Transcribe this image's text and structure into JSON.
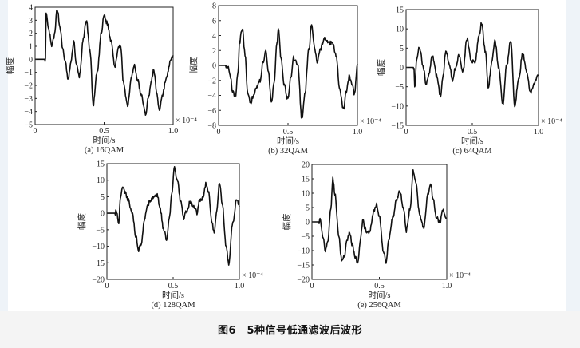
{
  "caption": "图6　5种信号低通滤波后波形",
  "colors": {
    "panel_bg": "#ffffff",
    "page_bg": "#f4f4f4",
    "trace": "#111111"
  },
  "chart_data": [
    {
      "type": "line",
      "subtitle": "(a) 16QAM",
      "xlabel": "时间/s",
      "ylabel": "幅度",
      "x_multiplier": "× 10⁻⁴",
      "xlim": [
        0,
        1.0
      ],
      "ylim": [
        -5,
        4
      ],
      "xticks": [
        0,
        0.5,
        1.0
      ],
      "yticks": [
        4,
        3,
        2,
        1,
        0,
        -1,
        -2,
        -3,
        -4,
        -5
      ],
      "frame": [
        44,
        9,
        217,
        156
      ],
      "x": [
        0,
        0.07,
        0.075,
        0.08,
        0.1,
        0.12,
        0.14,
        0.16,
        0.18,
        0.2,
        0.22,
        0.24,
        0.26,
        0.28,
        0.3,
        0.32,
        0.35,
        0.37,
        0.4,
        0.42,
        0.45,
        0.48,
        0.5,
        0.52,
        0.55,
        0.58,
        0.6,
        0.62,
        0.64,
        0.67,
        0.7,
        0.72,
        0.74,
        0.77,
        0.8,
        0.82,
        0.84,
        0.86,
        0.88,
        0.9,
        0.92,
        0.95,
        0.98,
        1.0
      ],
      "y": [
        0,
        0,
        0,
        3.4,
        2.2,
        1.0,
        1.8,
        3.9,
        2.5,
        0.8,
        -0.3,
        -1.6,
        -0.2,
        1.4,
        -0.5,
        -1.3,
        1.5,
        3.0,
        0.5,
        -3.5,
        -1.0,
        2.0,
        3.4,
        2.8,
        1.5,
        -0.6,
        0.8,
        1.0,
        -1.8,
        -3.5,
        -1.2,
        -0.5,
        -1.5,
        -2.8,
        -4.2,
        -3.0,
        -1.8,
        -0.8,
        -2.5,
        -3.9,
        -2.8,
        -1.5,
        -0.2,
        0.3
      ]
    },
    {
      "type": "line",
      "subtitle": "(b) 32QAM",
      "xlabel": "时间/s",
      "ylabel": "幅度",
      "x_multiplier": "× 10⁻⁴",
      "xlim": [
        0,
        1.0
      ],
      "ylim": [
        -8,
        8
      ],
      "xticks": [
        0,
        0.5,
        1.0
      ],
      "yticks": [
        8,
        6,
        4,
        2,
        0,
        -2,
        -4,
        -6,
        -8
      ],
      "frame": [
        274,
        7,
        448,
        157
      ],
      "x": [
        0,
        0.05,
        0.07,
        0.09,
        0.1,
        0.12,
        0.14,
        0.15,
        0.17,
        0.19,
        0.21,
        0.23,
        0.25,
        0.27,
        0.3,
        0.32,
        0.34,
        0.36,
        0.38,
        0.4,
        0.42,
        0.43,
        0.45,
        0.47,
        0.5,
        0.52,
        0.54,
        0.57,
        0.6,
        0.62,
        0.65,
        0.67,
        0.69,
        0.71,
        0.73,
        0.76,
        0.79,
        0.82,
        0.85,
        0.87,
        0.9,
        0.92,
        0.94,
        0.96,
        0.98,
        1.0
      ],
      "y": [
        0,
        0,
        -0.2,
        -2.0,
        -3.5,
        -4.2,
        -1.0,
        3.0,
        5.0,
        1.5,
        -3.5,
        -5.2,
        -4.0,
        -3.0,
        -2.0,
        0.5,
        2.0,
        -1.0,
        -5.0,
        -2.5,
        3.0,
        5.0,
        1.0,
        -2.5,
        -4.5,
        -1.5,
        1.0,
        0.0,
        -7.0,
        -4.0,
        2.0,
        5.5,
        2.5,
        0.5,
        2.0,
        3.5,
        3.0,
        3.0,
        1.0,
        -3.0,
        -5.8,
        -3.5,
        -1.5,
        -2.5,
        -3.8,
        0.2
      ]
    },
    {
      "type": "line",
      "subtitle": "(c) 64QAM",
      "xlabel": "时间/s",
      "ylabel": "幅度",
      "x_multiplier": "× 10⁻⁴",
      "xlim": [
        0,
        1.0
      ],
      "ylim": [
        -15,
        15
      ],
      "xticks": [
        0,
        0.5,
        1.0
      ],
      "yticks": [
        15,
        10,
        5,
        0,
        -5,
        -10,
        -15
      ],
      "frame": [
        509,
        12,
        675,
        157
      ],
      "x": [
        0,
        0.055,
        0.06,
        0.065,
        0.08,
        0.1,
        0.13,
        0.15,
        0.17,
        0.2,
        0.23,
        0.26,
        0.28,
        0.3,
        0.33,
        0.35,
        0.37,
        0.4,
        0.43,
        0.46,
        0.49,
        0.52,
        0.55,
        0.57,
        0.6,
        0.62,
        0.65,
        0.67,
        0.7,
        0.73,
        0.76,
        0.79,
        0.82,
        0.85,
        0.88,
        0.91,
        0.94,
        0.97,
        1.0
      ],
      "y": [
        0,
        0,
        0,
        -5.5,
        2.0,
        5.5,
        0,
        -4.0,
        -2.0,
        3.0,
        -2.0,
        -7.5,
        -2.0,
        4.5,
        0.5,
        -3.5,
        -0.5,
        3.0,
        -1.0,
        7.5,
        2.0,
        1.0,
        8.0,
        11.5,
        4.0,
        -5.0,
        2.0,
        7.0,
        0.0,
        -9.5,
        0.5,
        7.0,
        -10.0,
        -3.0,
        3.5,
        -1.0,
        -6.5,
        -4.0,
        -2.0
      ]
    },
    {
      "type": "line",
      "subtitle": "(d) 128QAM",
      "xlabel": "时间/s",
      "ylabel": "幅度",
      "x_multiplier": "× 10⁻⁴",
      "xlim": [
        0,
        1.0
      ],
      "ylim": [
        -20,
        15
      ],
      "xticks": [
        0,
        0.5,
        1.0
      ],
      "yticks": [
        15,
        10,
        5,
        0,
        -5,
        -10,
        -15,
        -20
      ],
      "frame": [
        134,
        205,
        300,
        350
      ],
      "x": [
        0,
        0.06,
        0.07,
        0.09,
        0.1,
        0.12,
        0.14,
        0.16,
        0.19,
        0.22,
        0.24,
        0.26,
        0.28,
        0.3,
        0.33,
        0.36,
        0.38,
        0.4,
        0.43,
        0.45,
        0.47,
        0.49,
        0.51,
        0.53,
        0.56,
        0.58,
        0.6,
        0.63,
        0.66,
        0.68,
        0.7,
        0.72,
        0.75,
        0.77,
        0.79,
        0.81,
        0.83,
        0.85,
        0.87,
        0.9,
        0.92,
        0.95,
        0.98,
        1.0
      ],
      "y": [
        0,
        0,
        0.5,
        -3.0,
        4.0,
        8.5,
        6.0,
        4.0,
        0,
        -7.0,
        -11.0,
        -9.0,
        -3.0,
        1.5,
        4.0,
        5.5,
        5.5,
        1.5,
        -5.0,
        -8.0,
        -2.0,
        6.0,
        13.5,
        10.0,
        3.0,
        -1.5,
        0.5,
        3.5,
        2.0,
        0.0,
        4.0,
        4.5,
        9.0,
        6.0,
        -2.0,
        -6.0,
        1.0,
        9.5,
        3.0,
        -10.0,
        -15.5,
        -3.0,
        4.0,
        2.0
      ]
    },
    {
      "type": "line",
      "subtitle": "(e) 256QAM",
      "xlabel": "时间/s",
      "ylabel": "幅度",
      "x_multiplier": "× 10⁻⁴",
      "xlim": [
        0,
        1.0
      ],
      "ylim": [
        -20,
        20
      ],
      "xticks": [
        0,
        0.5,
        1.0
      ],
      "yticks": [
        20,
        15,
        10,
        5,
        0,
        -5,
        -10,
        -15,
        -20
      ],
      "frame": [
        391,
        206,
        560,
        350
      ],
      "x": [
        0,
        0.05,
        0.06,
        0.08,
        0.1,
        0.12,
        0.14,
        0.155,
        0.17,
        0.2,
        0.22,
        0.24,
        0.26,
        0.28,
        0.3,
        0.32,
        0.34,
        0.36,
        0.38,
        0.39,
        0.41,
        0.43,
        0.46,
        0.48,
        0.5,
        0.53,
        0.55,
        0.57,
        0.6,
        0.63,
        0.65,
        0.68,
        0.7,
        0.73,
        0.75,
        0.77,
        0.8,
        0.83,
        0.86,
        0.88,
        0.9,
        0.92,
        0.95,
        0.97,
        1.0
      ],
      "y": [
        0,
        0,
        0.5,
        -5.0,
        -10.0,
        -6.0,
        5.0,
        15.0,
        10.0,
        -5.0,
        -13.0,
        -12.0,
        -6.0,
        -4.0,
        -8.0,
        -12.0,
        -14.0,
        -6.0,
        1.5,
        -2.0,
        -4.0,
        -3.0,
        4.0,
        6.0,
        2.0,
        -10.0,
        -14.0,
        -6.0,
        2.0,
        8.0,
        11.0,
        5.0,
        -3.0,
        5.0,
        18.0,
        14.0,
        2.0,
        -2.0,
        10.0,
        13.0,
        8.0,
        2.0,
        0.0,
        4.0,
        1.0
      ]
    }
  ]
}
